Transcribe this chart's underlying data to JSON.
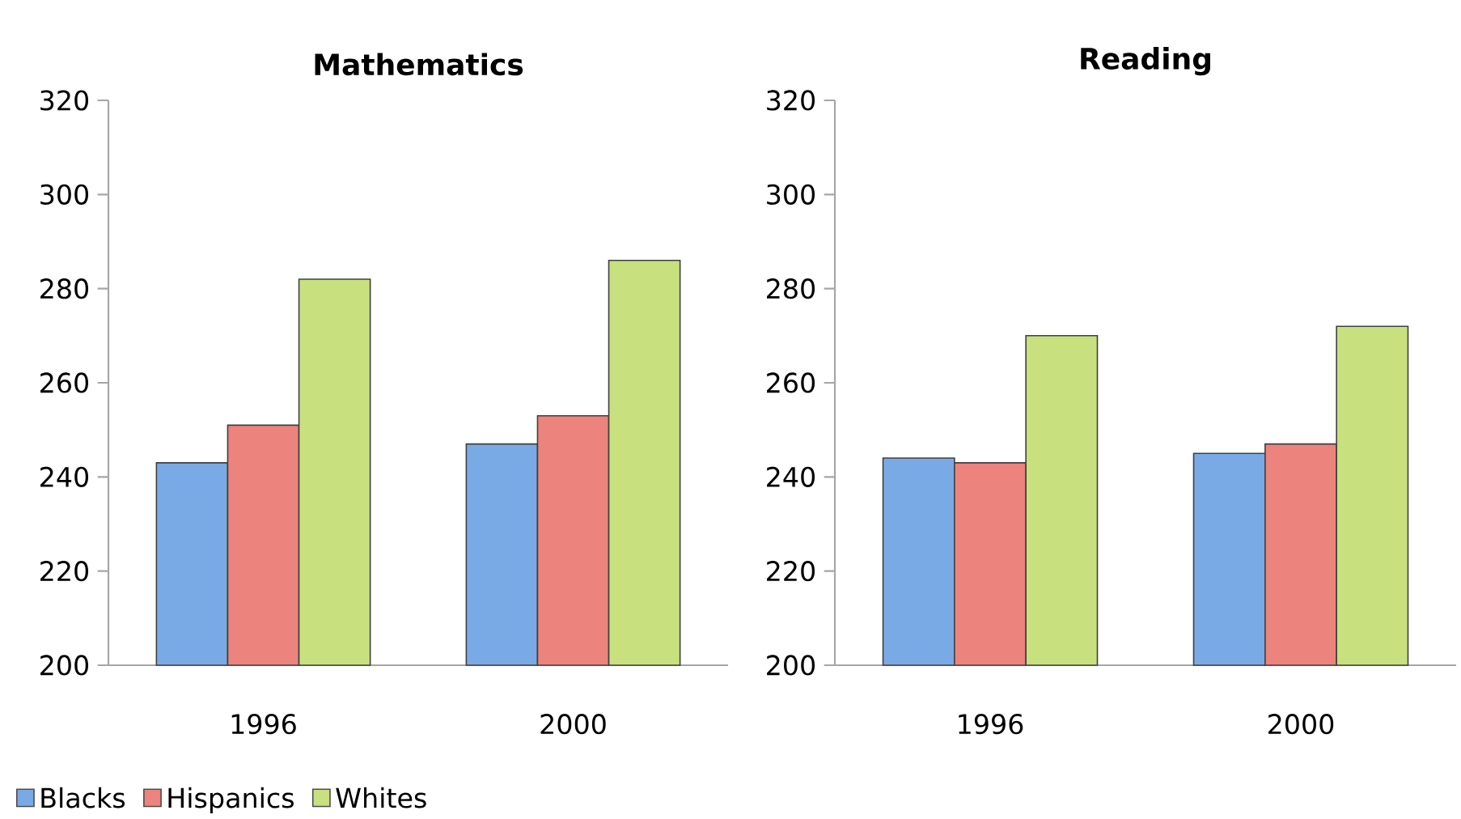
{
  "chart_data": [
    {
      "type": "bar",
      "title": "Mathematics",
      "categories": [
        "1996",
        "2000"
      ],
      "ylim": [
        200,
        320
      ],
      "yticks": [
        200,
        220,
        240,
        260,
        280,
        300,
        320
      ],
      "legend": "bottom left",
      "series": [
        {
          "name": "Blacks",
          "color": "#7aaae6",
          "values": [
            243,
            247
          ]
        },
        {
          "name": "Hispanics",
          "color": "#ec837c",
          "values": [
            251,
            253
          ]
        },
        {
          "name": "Whites",
          "color": "#c8e07e",
          "values": [
            282,
            286
          ]
        }
      ]
    },
    {
      "type": "bar",
      "title": "Reading",
      "categories": [
        "1996",
        "2000"
      ],
      "ylim": [
        200,
        320
      ],
      "yticks": [
        200,
        220,
        240,
        260,
        280,
        300,
        320
      ],
      "series": [
        {
          "color": "#7aaae6",
          "values": [
            244,
            245
          ]
        },
        {
          "color": "#ec837c",
          "values": [
            243,
            247
          ]
        },
        {
          "color": "#c8e07e",
          "values": [
            270,
            272
          ]
        }
      ]
    }
  ]
}
